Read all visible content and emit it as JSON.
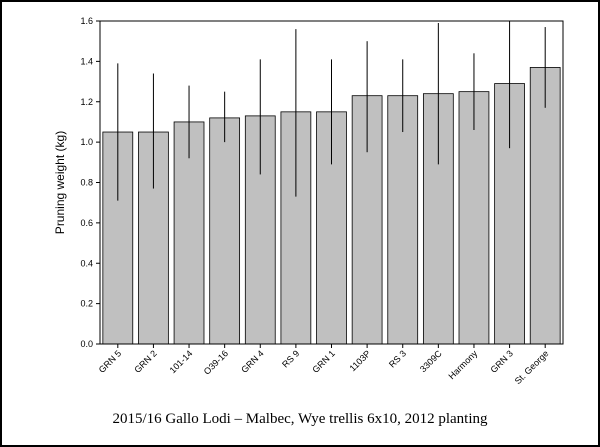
{
  "caption": "2015/16 Gallo Lodi – Malbec, Wye trellis 6x10, 2012 planting",
  "colors": {
    "bar": "#c0c0c0",
    "bar_stroke": "#000000",
    "error_bar": "#000000"
  },
  "chart_data": {
    "type": "bar",
    "title": "",
    "xlabel": "",
    "ylabel": "Pruning weight (kg)",
    "ylim": [
      0,
      1.6
    ],
    "yticks": [
      "0.0",
      "0.2",
      "0.4",
      "0.6",
      "0.8",
      "1.0",
      "1.2",
      "1.4",
      "1.6"
    ],
    "grid": false,
    "categories": [
      "GRN 5",
      "GRN 2",
      "101-14",
      "O39-16",
      "GRN 4",
      "RS 9",
      "GRN 1",
      "1103P",
      "RS 3",
      "3309C",
      "Harmony",
      "GRN 3",
      "St. George"
    ],
    "values": [
      1.05,
      1.05,
      1.1,
      1.12,
      1.13,
      1.15,
      1.15,
      1.23,
      1.23,
      1.24,
      1.25,
      1.29,
      1.37
    ],
    "error_low": [
      0.71,
      0.77,
      0.92,
      1.0,
      0.84,
      0.73,
      0.89,
      0.95,
      1.05,
      0.89,
      1.06,
      0.97,
      1.17
    ],
    "error_high": [
      1.39,
      1.34,
      1.28,
      1.25,
      1.41,
      1.56,
      1.41,
      1.5,
      1.41,
      1.59,
      1.44,
      1.6,
      1.57
    ]
  }
}
